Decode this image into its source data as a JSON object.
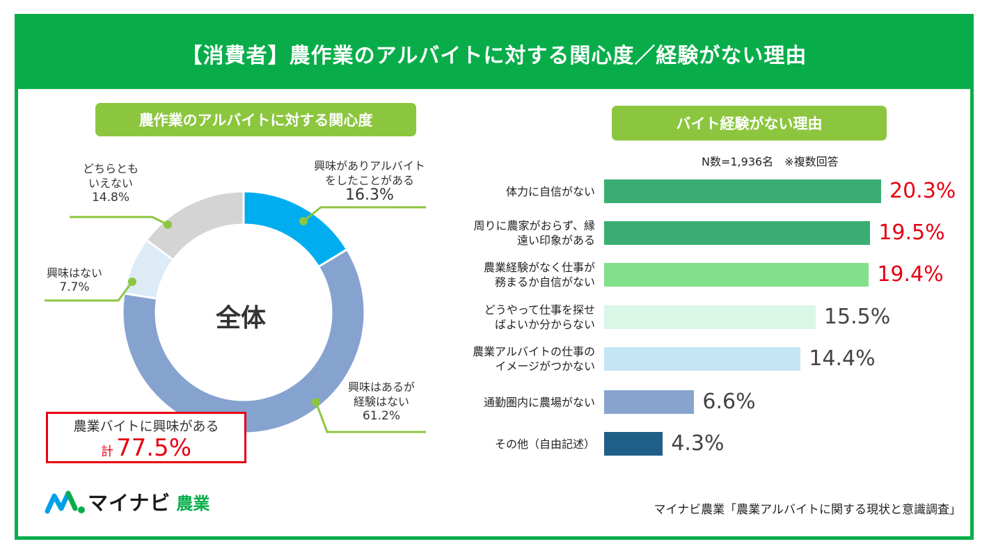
{
  "title": "【消費者】農作業のアルバイトに対する関心度／経験がない理由",
  "left_section": {
    "heading": "農作業のアルバイトに対する関心度",
    "center_label": "全体",
    "labels": {
      "experienced": [
        "興味がありアルバイト",
        "をしたことがある",
        "16.3%"
      ],
      "interested_no_exp": [
        "興味はあるが",
        "経験はない",
        "61.2%"
      ],
      "not_interested": [
        "興味はない",
        "7.7%"
      ],
      "neutral": [
        "どちらとも",
        "いえない",
        "14.8%"
      ]
    },
    "total_box": {
      "line1": "農業バイトに興味がある",
      "prefix": "計",
      "value": "77.5%"
    }
  },
  "right_section": {
    "heading": "バイト経験がない理由",
    "note": "N数=1,936名　※複数回答"
  },
  "chart_data": [
    {
      "type": "pie",
      "title": "農作業のアルバイトに対する関心度",
      "center_label": "全体",
      "slices": [
        {
          "label": "興味がありアルバイトをしたことがある",
          "value": 16.3,
          "color": "#00aeef"
        },
        {
          "label": "興味はあるが経験はない",
          "value": 61.2,
          "color": "#86a3d0"
        },
        {
          "label": "興味はない",
          "value": 7.7,
          "color": "#ddebf7"
        },
        {
          "label": "どちらともいえない",
          "value": 14.8,
          "color": "#d4d4d4"
        }
      ]
    },
    {
      "type": "bar",
      "orientation": "horizontal",
      "title": "バイト経験がない理由",
      "categories": [
        [
          "体力に自信がない"
        ],
        [
          "周りに農家がおらず、縁",
          "遠い印象がある"
        ],
        [
          "農業経験がなく仕事が",
          "務まるか自信がない"
        ],
        [
          "どうやって仕事を探せ",
          "ばよいか分からない"
        ],
        [
          "農業アルバイトの仕事の",
          "イメージがつかない"
        ],
        [
          "通勤圏内に農場がない"
        ],
        [
          "その他（自由記述）"
        ]
      ],
      "values": [
        20.3,
        19.5,
        19.4,
        15.5,
        14.4,
        6.6,
        4.3
      ],
      "value_labels": [
        "20.3%",
        "19.5%",
        "19.4%",
        "15.5%",
        "14.4%",
        "6.6%",
        "4.3%"
      ],
      "colors": [
        "#3aae72",
        "#3aae72",
        "#82df8a",
        "#d9f7e6",
        "#c5e5f5",
        "#88a4ce",
        "#1f5f87"
      ],
      "highlight_colors": [
        "#e60012",
        "#e60012",
        "#e60012",
        "#444444",
        "#444444",
        "#444444",
        "#444444"
      ]
    }
  ],
  "logo": {
    "brand": "マイナビ",
    "sub": "農業"
  },
  "source": "マイナビ農業「農業アルバイトに関する現状と意識調査」"
}
